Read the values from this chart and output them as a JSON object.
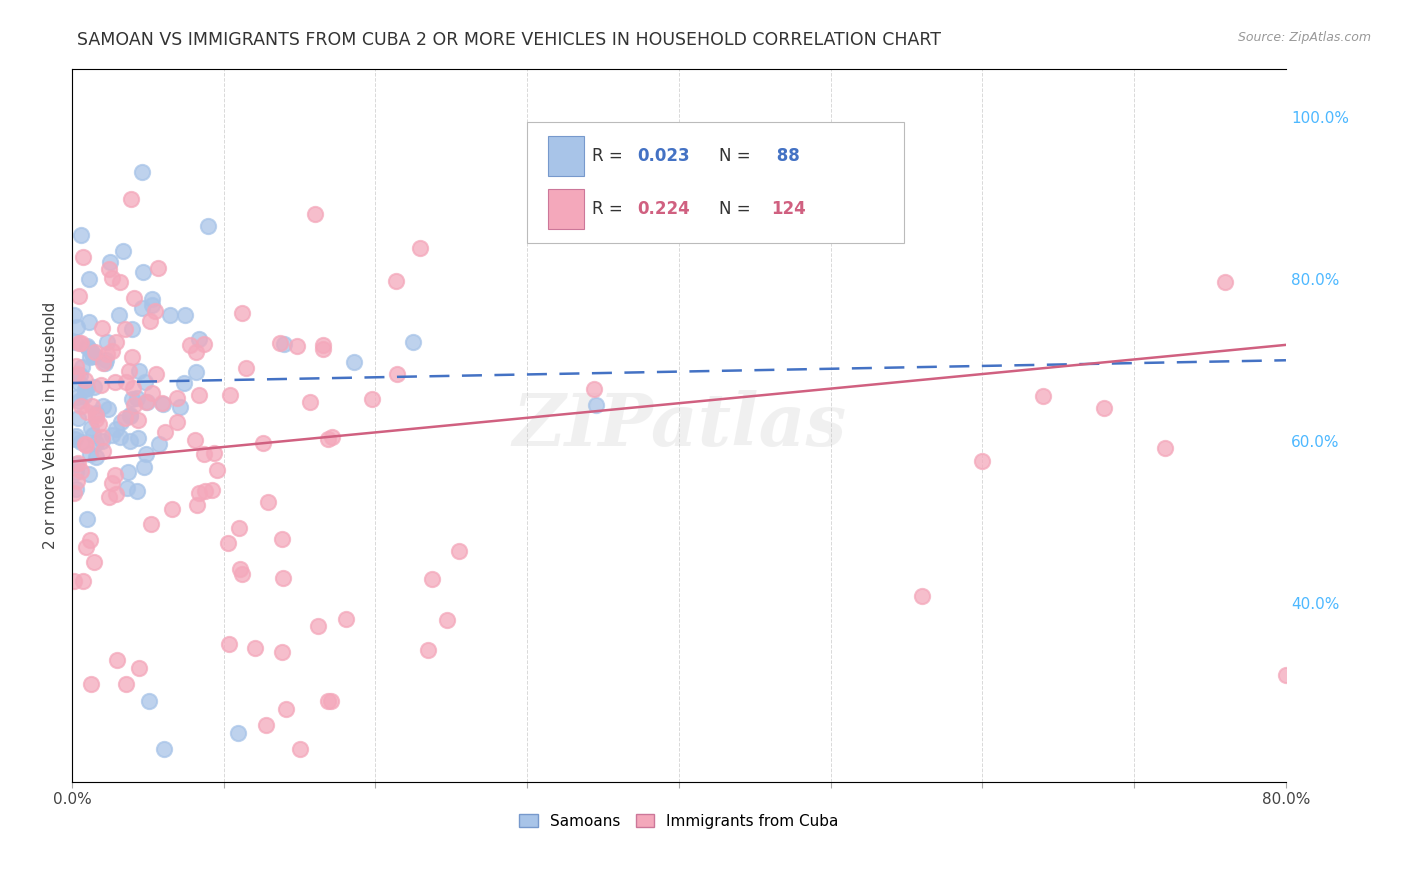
{
  "title": "SAMOAN VS IMMIGRANTS FROM CUBA 2 OR MORE VEHICLES IN HOUSEHOLD CORRELATION CHART",
  "source": "Source: ZipAtlas.com",
  "ylabel": "2 or more Vehicles in Household",
  "x_min": 0.0,
  "x_max": 0.8,
  "y_min": 0.18,
  "y_max": 1.06,
  "x_tick_positions": [
    0.0,
    0.1,
    0.2,
    0.3,
    0.4,
    0.5,
    0.6,
    0.7,
    0.8
  ],
  "x_tick_labels": [
    "0.0%",
    "",
    "",
    "",
    "",
    "",
    "",
    "",
    "80.0%"
  ],
  "y_ticks_right": [
    0.4,
    0.6,
    0.8,
    1.0
  ],
  "y_tick_labels_right": [
    "40.0%",
    "60.0%",
    "80.0%",
    "100.0%"
  ],
  "samoans_color": "#a8c4e8",
  "cuba_color": "#f4a8bb",
  "trendline_samoans_color": "#4472c4",
  "trendline_cuba_color": "#d06080",
  "background_color": "#ffffff",
  "grid_color": "#d0d0d0",
  "r_samoans": 0.023,
  "n_samoans": 88,
  "r_cuba": 0.224,
  "n_cuba": 124,
  "watermark": "ZIPatlas",
  "watermark_color": "#cccccc",
  "legend_r_color": "#4472c4",
  "legend_r_cuba_color": "#d06080",
  "legend_n_color": "#4472c4",
  "legend_n_cuba_color": "#d06080"
}
